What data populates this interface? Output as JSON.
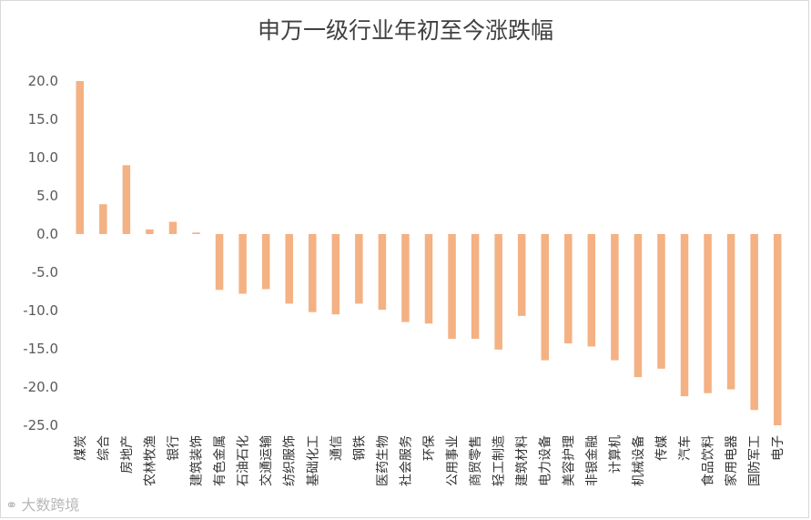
{
  "chart_data": {
    "type": "bar",
    "title": "申万一级行业年初至今涨跌幅",
    "xlabel": "",
    "ylabel": "",
    "ylim": [
      -25,
      20
    ],
    "yticks": [
      "20.0",
      "15.0",
      "10.0",
      "5.0",
      "0.0",
      "-5.0",
      "-10.0",
      "-15.0",
      "-20.0",
      "-25.0"
    ],
    "grid": false,
    "legend": "none",
    "bar_color": "#f4b183",
    "categories": [
      "煤炭",
      "综合",
      "房地产",
      "农林牧渔",
      "银行",
      "建筑装饰",
      "有色金属",
      "石油石化",
      "交通运输",
      "纺织服饰",
      "基础化工",
      "通信",
      "钢铁",
      "医药生物",
      "社会服务",
      "环保",
      "公用事业",
      "商贸零售",
      "轻工制造",
      "建筑材料",
      "电力设备",
      "美容护理",
      "非银金融",
      "计算机",
      "机械设备",
      "传媒",
      "汽车",
      "食品饮料",
      "家用电器",
      "国防军工",
      "电子"
    ],
    "values": [
      20.0,
      3.9,
      9.0,
      0.6,
      1.6,
      0.2,
      -7.3,
      -7.8,
      -7.2,
      -9.1,
      -10.2,
      -10.5,
      -9.1,
      -9.9,
      -11.5,
      -11.7,
      -13.7,
      -13.7,
      -15.1,
      -10.7,
      -16.5,
      -14.3,
      -14.7,
      -16.5,
      -18.7,
      -17.6,
      -21.2,
      -20.8,
      -20.3,
      -23.0,
      -25.0
    ]
  },
  "watermark": {
    "text": "大数跨境",
    "icon": "logo-icon"
  }
}
